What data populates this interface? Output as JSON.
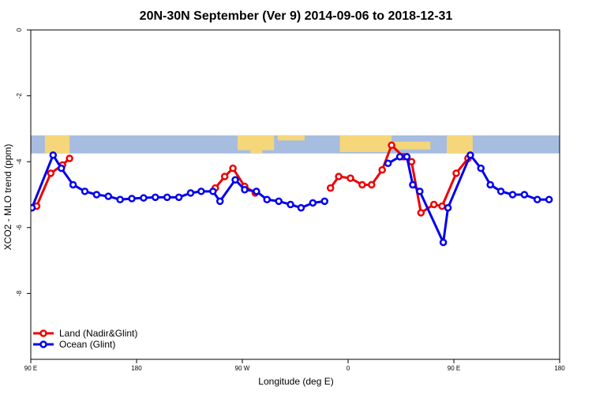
{
  "chart_data": {
    "type": "line",
    "title": "20N-30N September (Ver 9)   2014-09-06 to 2018-12-31",
    "xlabel": "Longitude (deg E)",
    "ylabel": "XCO2 - MLO trend (ppm)",
    "xlim": [
      90,
      540
    ],
    "ylim": [
      -10,
      0
    ],
    "x_ticks": [
      {
        "value": 90,
        "label": "90 E"
      },
      {
        "value": 180,
        "label": "180"
      },
      {
        "value": 270,
        "label": "90 W"
      },
      {
        "value": 360,
        "label": "0"
      },
      {
        "value": 450,
        "label": "90 E"
      },
      {
        "value": 540,
        "label": "180"
      }
    ],
    "y_ticks": [
      {
        "value": 0,
        "label": "0"
      },
      {
        "value": -2,
        "label": "-2"
      },
      {
        "value": -4,
        "label": "-4"
      },
      {
        "value": -6,
        "label": "-6"
      },
      {
        "value": -8,
        "label": "-8"
      }
    ],
    "map_band": {
      "ymin": -3.75,
      "ymax": -3.2,
      "ocean_color": "#a7bddf",
      "land_color": "#f6d67a"
    },
    "legend_position": "bottom-left",
    "series": [
      {
        "name": "Land (Nadir&Glint)",
        "color": "#ee0000",
        "segments": [
          [
            {
              "x": 95,
              "y": -5.35
            },
            {
              "x": 107,
              "y": -4.35
            },
            {
              "x": 117,
              "y": -4.1
            },
            {
              "x": 123,
              "y": -3.9
            }
          ],
          [
            {
              "x": 247,
              "y": -4.8
            },
            {
              "x": 255,
              "y": -4.45
            },
            {
              "x": 262,
              "y": -4.2
            },
            {
              "x": 272,
              "y": -4.75
            },
            {
              "x": 281,
              "y": -4.95
            }
          ],
          [
            {
              "x": 345,
              "y": -4.8
            },
            {
              "x": 352,
              "y": -4.45
            },
            {
              "x": 362,
              "y": -4.5
            },
            {
              "x": 372,
              "y": -4.7
            },
            {
              "x": 380,
              "y": -4.7
            },
            {
              "x": 389,
              "y": -4.25
            },
            {
              "x": 397,
              "y": -3.5
            },
            {
              "x": 407,
              "y": -3.85
            },
            {
              "x": 414,
              "y": -4.0
            },
            {
              "x": 422,
              "y": -5.55
            },
            {
              "x": 433,
              "y": -5.3
            },
            {
              "x": 440,
              "y": -5.35
            },
            {
              "x": 452,
              "y": -4.35
            },
            {
              "x": 462,
              "y": -3.9
            }
          ]
        ]
      },
      {
        "name": "Ocean (Glint)",
        "color": "#0000ee",
        "segments": [
          [
            {
              "x": 91,
              "y": -5.4
            },
            {
              "x": 109,
              "y": -3.8
            },
            {
              "x": 116,
              "y": -4.2
            },
            {
              "x": 126,
              "y": -4.7
            },
            {
              "x": 136,
              "y": -4.9
            },
            {
              "x": 146,
              "y": -5.0
            },
            {
              "x": 156,
              "y": -5.05
            },
            {
              "x": 166,
              "y": -5.15
            },
            {
              "x": 176,
              "y": -5.12
            },
            {
              "x": 186,
              "y": -5.1
            },
            {
              "x": 196,
              "y": -5.08
            },
            {
              "x": 206,
              "y": -5.08
            },
            {
              "x": 216,
              "y": -5.08
            },
            {
              "x": 226,
              "y": -4.95
            },
            {
              "x": 235,
              "y": -4.9
            },
            {
              "x": 245,
              "y": -4.9
            },
            {
              "x": 251,
              "y": -5.2
            },
            {
              "x": 264,
              "y": -4.55
            },
            {
              "x": 272,
              "y": -4.85
            },
            {
              "x": 282,
              "y": -4.9
            },
            {
              "x": 291,
              "y": -5.15
            },
            {
              "x": 301,
              "y": -5.2
            },
            {
              "x": 311,
              "y": -5.3
            },
            {
              "x": 320,
              "y": -5.4
            },
            {
              "x": 330,
              "y": -5.25
            },
            {
              "x": 340,
              "y": -5.2
            }
          ],
          [
            {
              "x": 394,
              "y": -4.05
            },
            {
              "x": 404,
              "y": -3.85
            },
            {
              "x": 410,
              "y": -3.85
            },
            {
              "x": 415,
              "y": -4.7
            },
            {
              "x": 421,
              "y": -4.9
            },
            {
              "x": 441,
              "y": -6.45
            },
            {
              "x": 445,
              "y": -5.4
            },
            {
              "x": 464,
              "y": -3.8
            },
            {
              "x": 473,
              "y": -4.2
            },
            {
              "x": 481,
              "y": -4.7
            },
            {
              "x": 490,
              "y": -4.9
            },
            {
              "x": 500,
              "y": -5.0
            },
            {
              "x": 510,
              "y": -5.0
            },
            {
              "x": 521,
              "y": -5.15
            },
            {
              "x": 531,
              "y": -5.15
            }
          ]
        ]
      }
    ]
  }
}
